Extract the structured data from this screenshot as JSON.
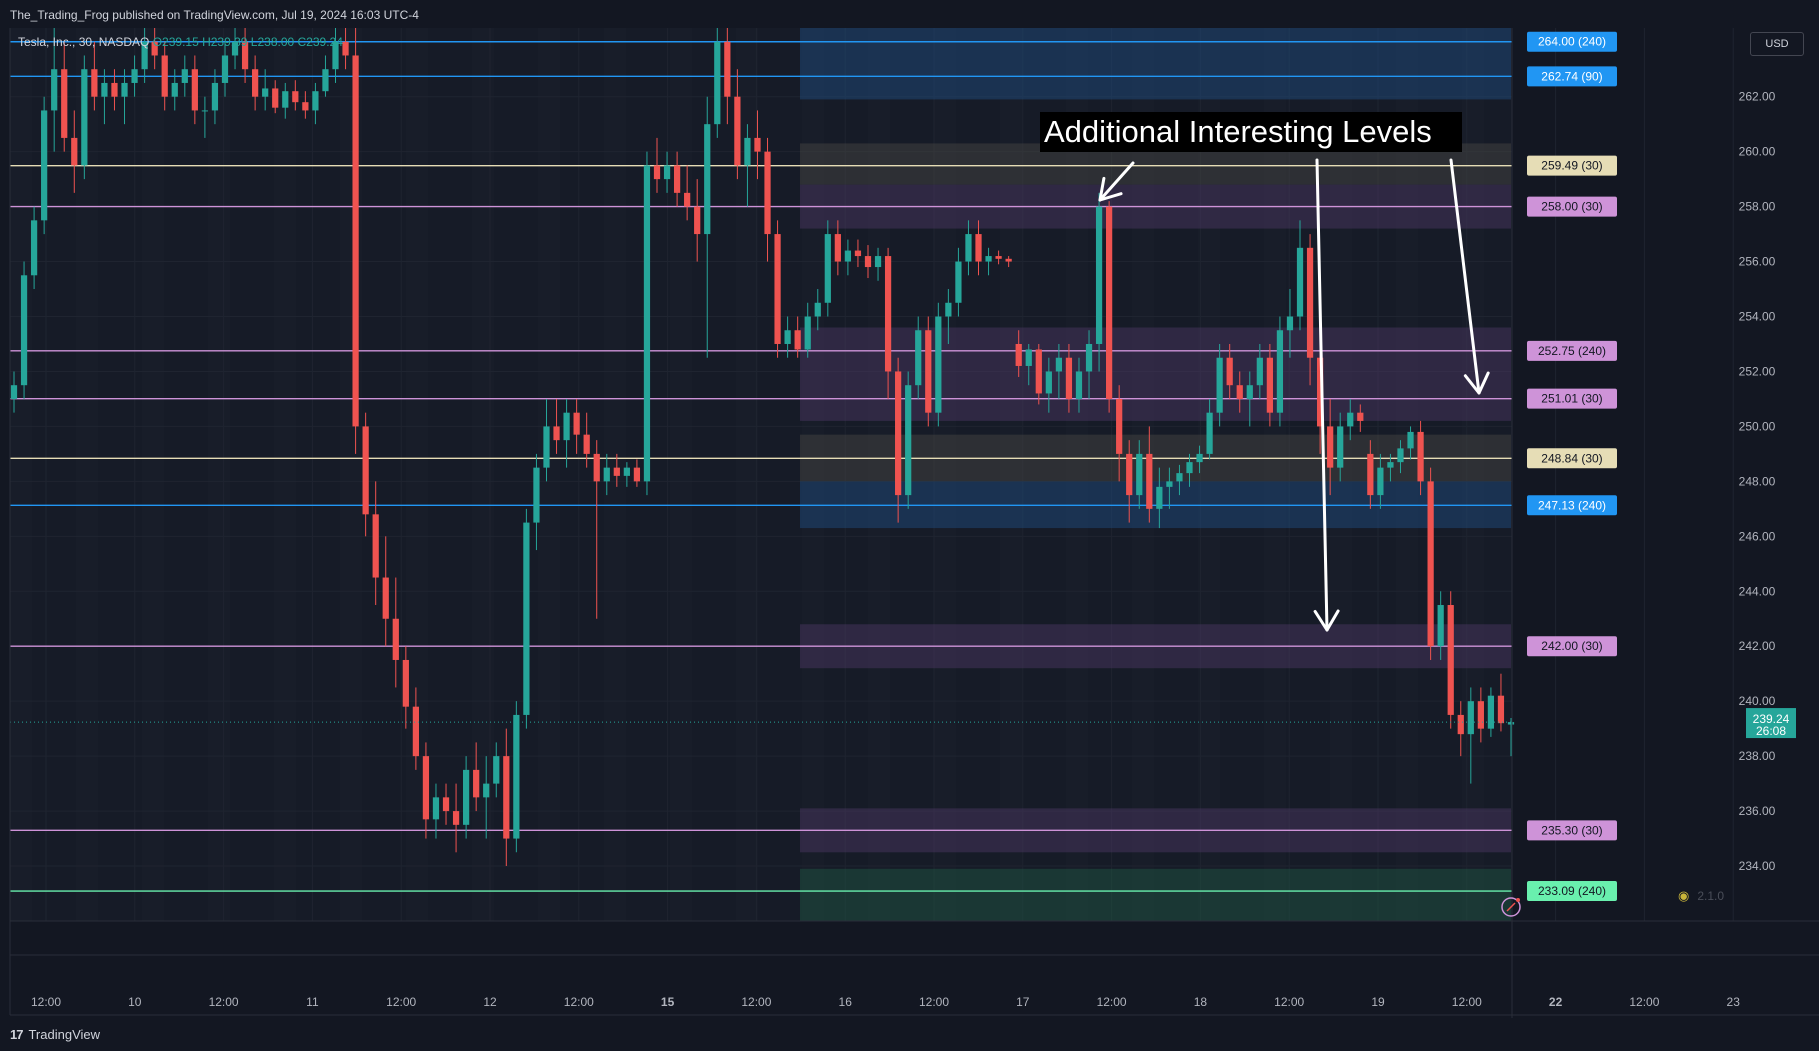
{
  "topbar": {
    "published_text": "The_Trading_Frog published on TradingView.com, Jul 19, 2024 16:03 UTC-4"
  },
  "currency": "USD",
  "annotation": "Additional Interesting Levels",
  "brand": {
    "logo_text": "17",
    "name": "TradingView"
  },
  "version_badge": "2.1.0",
  "colors": {
    "background": "#131722",
    "up": "#26a69a",
    "down": "#ef5350",
    "blue_level": "#2196f3",
    "violet_level": "#ce93d8",
    "sand_level": "#e6ddb6",
    "green_level": "#69f0ae"
  },
  "chart_data": {
    "type": "candlestick",
    "symbol": "Tesla, Inc.",
    "interval": "30",
    "exchange": "NASDAQ",
    "ohlc": {
      "o": "O239.15",
      "h": "H239.39",
      "l": "L238.00",
      "c": "C239.24"
    },
    "currency": "USD",
    "ylim": [
      232,
      264.5
    ],
    "y_ticks": [
      "234.00",
      "236.00",
      "238.00",
      "240.00",
      "242.00",
      "244.00",
      "246.00",
      "248.00",
      "250.00",
      "252.00",
      "254.00",
      "256.00",
      "258.00",
      "260.00",
      "262.00"
    ],
    "last_price": {
      "value": 239.24,
      "label": "239.24",
      "countdown": "26:08"
    },
    "x_ticks": [
      {
        "label": "12:00",
        "bold": false
      },
      {
        "label": "10",
        "bold": false
      },
      {
        "label": "12:00",
        "bold": false
      },
      {
        "label": "11",
        "bold": false
      },
      {
        "label": "12:00",
        "bold": false
      },
      {
        "label": "12",
        "bold": false
      },
      {
        "label": "12:00",
        "bold": false
      },
      {
        "label": "15",
        "bold": true
      },
      {
        "label": "12:00",
        "bold": false
      },
      {
        "label": "16",
        "bold": false
      },
      {
        "label": "12:00",
        "bold": false
      },
      {
        "label": "17",
        "bold": false
      },
      {
        "label": "12:00",
        "bold": false
      },
      {
        "label": "18",
        "bold": false
      },
      {
        "label": "12:00",
        "bold": false
      },
      {
        "label": "19",
        "bold": false
      },
      {
        "label": "12:00",
        "bold": false
      },
      {
        "label": "22",
        "bold": true
      },
      {
        "label": "12:00",
        "bold": false
      },
      {
        "label": "23",
        "bold": false
      }
    ],
    "levels": [
      {
        "value": 264.0,
        "label": "264.00 (240)",
        "kind": "blue"
      },
      {
        "value": 262.74,
        "label": "262.74 (90)",
        "kind": "blue"
      },
      {
        "value": 259.49,
        "label": "259.49 (30)",
        "kind": "sand"
      },
      {
        "value": 258.0,
        "label": "258.00 (30)",
        "kind": "violet"
      },
      {
        "value": 252.75,
        "label": "252.75 (240)",
        "kind": "violet"
      },
      {
        "value": 251.01,
        "label": "251.01 (30)",
        "kind": "violet"
      },
      {
        "value": 248.84,
        "label": "248.84 (30)",
        "kind": "sand"
      },
      {
        "value": 247.13,
        "label": "247.13 (240)",
        "kind": "blue"
      },
      {
        "value": 242.0,
        "label": "242.00 (30)",
        "kind": "violet"
      },
      {
        "value": 235.3,
        "label": "235.30 (30)",
        "kind": "violet"
      },
      {
        "value": 233.09,
        "label": "233.09 (240)",
        "kind": "green"
      }
    ],
    "zones": [
      {
        "y1": 261.9,
        "y2": 264.8,
        "kind": "blue"
      },
      {
        "y1": 258.8,
        "y2": 260.3,
        "kind": "sand"
      },
      {
        "y1": 257.2,
        "y2": 258.8,
        "kind": "violet"
      },
      {
        "y1": 250.2,
        "y2": 253.6,
        "kind": "violet"
      },
      {
        "y1": 248.0,
        "y2": 249.7,
        "kind": "sand"
      },
      {
        "y1": 246.3,
        "y2": 248.0,
        "kind": "blue"
      },
      {
        "y1": 241.2,
        "y2": 242.8,
        "kind": "violet"
      },
      {
        "y1": 234.5,
        "y2": 236.1,
        "kind": "violet"
      },
      {
        "y1": 232.0,
        "y2": 233.9,
        "kind": "green"
      }
    ],
    "candles": [
      [
        251,
        252,
        250.5,
        251.5
      ],
      [
        251.5,
        256,
        251,
        255.5
      ],
      [
        255.5,
        258,
        255,
        257.5
      ],
      [
        257.5,
        262,
        257,
        261.5
      ],
      [
        261.5,
        264.5,
        260,
        263
      ],
      [
        263,
        264,
        260,
        260.5
      ],
      [
        260.5,
        261.5,
        258.5,
        259.5
      ],
      [
        259.5,
        263.5,
        259,
        263
      ],
      [
        263,
        264,
        261.5,
        262
      ],
      [
        262,
        263,
        261,
        262.5
      ],
      [
        262.5,
        263,
        261.5,
        262
      ],
      [
        262,
        263,
        261,
        262.5
      ],
      [
        262.5,
        263.5,
        262,
        263
      ],
      [
        263,
        264.5,
        262.5,
        264
      ],
      [
        264,
        264.8,
        263,
        263.5
      ],
      [
        263.5,
        264,
        261.5,
        262
      ],
      [
        262,
        263,
        261.5,
        262.5
      ],
      [
        262.5,
        263.5,
        262,
        263
      ],
      [
        263,
        263.5,
        261,
        261.5
      ],
      [
        261.5,
        262,
        260.5,
        261.5
      ],
      [
        261.5,
        263,
        261,
        262.5
      ],
      [
        262.5,
        264,
        262,
        263.5
      ],
      [
        263.5,
        264.8,
        263,
        264
      ],
      [
        264,
        264.8,
        262.5,
        263
      ],
      [
        263,
        263.5,
        261.5,
        262
      ],
      [
        262,
        263,
        261.5,
        262.3
      ],
      [
        262.3,
        262.6,
        261.4,
        261.6
      ],
      [
        261.6,
        262.5,
        261.2,
        262.2
      ],
      [
        262.2,
        262.6,
        261.5,
        261.8
      ],
      [
        261.8,
        262.2,
        261.2,
        261.5
      ],
      [
        261.5,
        262.5,
        261,
        262.2
      ],
      [
        262.2,
        263.5,
        262,
        263
      ],
      [
        263,
        264.5,
        262.5,
        264
      ],
      [
        264,
        264.8,
        263,
        263.5
      ],
      [
        263.5,
        264.5,
        249,
        250
      ],
      [
        250,
        250.5,
        246,
        246.8
      ],
      [
        246.8,
        248,
        243.5,
        244.5
      ],
      [
        244.5,
        246,
        242,
        243
      ],
      [
        243,
        244.5,
        240.5,
        241.5
      ],
      [
        241.5,
        242,
        239,
        239.8
      ],
      [
        239.8,
        240.5,
        237.5,
        238
      ],
      [
        238,
        238.5,
        235,
        235.7
      ],
      [
        235.7,
        237,
        235,
        236.5
      ],
      [
        236.5,
        237,
        235.5,
        236
      ],
      [
        236,
        237,
        234.5,
        235.5
      ],
      [
        235.5,
        238,
        235,
        237.5
      ],
      [
        237.5,
        238.5,
        236,
        236.5
      ],
      [
        236.5,
        238,
        235,
        237
      ],
      [
        237,
        238.5,
        236.5,
        238
      ],
      [
        238,
        239,
        234,
        235
      ],
      [
        235,
        240,
        234.5,
        239.5
      ],
      [
        239.5,
        247,
        239,
        246.5
      ],
      [
        246.5,
        249,
        245.5,
        248.5
      ],
      [
        248.5,
        251,
        248,
        250
      ],
      [
        250,
        251,
        249,
        249.5
      ],
      [
        249.5,
        251,
        248.5,
        250.5
      ],
      [
        250.5,
        251,
        249,
        249.7
      ],
      [
        249.7,
        250.5,
        248.5,
        249
      ],
      [
        249,
        249.5,
        243,
        248
      ],
      [
        248,
        249,
        247.5,
        248.5
      ],
      [
        248.5,
        249,
        247.8,
        248.2
      ],
      [
        248.2,
        248.7,
        247.8,
        248.5
      ],
      [
        248.5,
        248.8,
        247.8,
        248
      ],
      [
        248,
        260,
        247.5,
        259.5
      ],
      [
        259.5,
        260.5,
        258.5,
        259
      ],
      [
        259,
        260,
        258.5,
        259.5
      ],
      [
        259.5,
        260,
        258,
        258.5
      ],
      [
        258.5,
        259.5,
        257.5,
        258
      ],
      [
        258,
        259,
        256,
        257
      ],
      [
        257,
        262,
        252.5,
        261
      ],
      [
        261,
        264.8,
        260.5,
        264
      ],
      [
        264,
        264.5,
        261,
        262
      ],
      [
        262,
        263,
        259,
        259.5
      ],
      [
        259.5,
        261,
        258,
        260.5
      ],
      [
        260.5,
        261.5,
        259,
        260
      ],
      [
        260,
        260.5,
        256,
        257
      ],
      [
        257,
        257.5,
        252.5,
        253
      ],
      [
        253,
        254,
        252.5,
        253.5
      ],
      [
        253.5,
        254,
        252.5,
        252.8
      ],
      [
        252.8,
        254.5,
        252.5,
        254
      ],
      [
        254,
        255,
        253.5,
        254.5
      ],
      [
        254.5,
        257.5,
        254,
        257
      ],
      [
        257,
        257.5,
        255.5,
        256
      ],
      [
        256,
        256.8,
        255.5,
        256.4
      ],
      [
        256.4,
        256.8,
        255.8,
        256.2
      ],
      [
        256.2,
        256.6,
        255.4,
        255.8
      ],
      [
        255.8,
        256.5,
        255.3,
        256.2
      ],
      [
        256.2,
        256.5,
        251,
        252
      ],
      [
        252,
        252.5,
        246.5,
        247.5
      ],
      [
        247.5,
        252,
        247,
        251.5
      ],
      [
        251.5,
        254,
        251,
        253.5
      ],
      [
        253.5,
        254,
        250,
        250.5
      ],
      [
        250.5,
        254.5,
        250,
        254
      ],
      [
        254,
        255,
        253,
        254.5
      ],
      [
        254.5,
        256.5,
        254,
        256
      ],
      [
        256,
        257.5,
        255.5,
        257
      ],
      [
        257,
        257.5,
        255.5,
        256
      ],
      [
        256,
        256.5,
        255.5,
        256.2
      ],
      [
        256.2,
        256.4,
        255.9,
        256.1
      ],
      [
        256.1,
        256.2,
        255.8,
        256
      ],
      [
        253,
        253.5,
        251.8,
        252.2
      ],
      [
        252.2,
        253,
        251.5,
        252.8
      ],
      [
        252.8,
        253,
        250.8,
        251.2
      ],
      [
        251.2,
        252.5,
        250.5,
        252
      ],
      [
        252,
        253,
        251,
        252.5
      ],
      [
        252.5,
        253,
        250.5,
        251
      ],
      [
        251,
        252.5,
        250.5,
        252
      ],
      [
        252,
        253.5,
        251,
        253
      ],
      [
        253,
        258.5,
        252,
        258
      ],
      [
        258,
        258.2,
        250.5,
        251
      ],
      [
        251,
        251.5,
        248,
        249
      ],
      [
        249,
        249.5,
        246.5,
        247.5
      ],
      [
        247.5,
        249.5,
        247,
        249
      ],
      [
        249,
        250,
        246.5,
        247
      ],
      [
        247,
        248.5,
        246.3,
        247.8
      ],
      [
        247.8,
        248.5,
        247,
        248
      ],
      [
        248,
        248.6,
        247.5,
        248.3
      ],
      [
        248.3,
        249,
        247.8,
        248.7
      ],
      [
        248.7,
        249.3,
        248.3,
        249
      ],
      [
        249,
        251,
        248.8,
        250.5
      ],
      [
        250.5,
        253,
        250,
        252.5
      ],
      [
        252.5,
        253,
        251,
        251.5
      ],
      [
        251.5,
        252,
        250.5,
        251
      ],
      [
        251,
        252,
        250,
        251.5
      ],
      [
        251.5,
        253,
        251,
        252.5
      ],
      [
        252.5,
        253,
        250,
        250.5
      ],
      [
        250.5,
        254,
        250,
        253.5
      ],
      [
        253.5,
        255,
        252.5,
        254
      ],
      [
        254,
        257.5,
        253.5,
        256.5
      ],
      [
        256.5,
        257,
        251.5,
        252.5
      ],
      [
        252.5,
        253,
        249,
        250
      ],
      [
        250,
        251,
        247.5,
        248.5
      ],
      [
        248.5,
        250.5,
        248,
        250
      ],
      [
        250,
        251,
        249.5,
        250.5
      ],
      [
        250.5,
        250.8,
        249.8,
        250.2
      ],
      [
        249,
        249.5,
        247,
        247.5
      ],
      [
        247.5,
        249,
        247,
        248.5
      ],
      [
        248.5,
        249,
        248,
        248.7
      ],
      [
        248.7,
        249.5,
        248.3,
        249.2
      ],
      [
        249.2,
        250,
        248.8,
        249.8
      ],
      [
        249.8,
        250.2,
        247.5,
        248
      ],
      [
        248,
        248.5,
        241.5,
        242
      ],
      [
        242,
        244,
        241.5,
        243.5
      ],
      [
        243.5,
        244,
        239,
        239.5
      ],
      [
        239.5,
        240,
        238,
        238.8
      ],
      [
        238.8,
        240.5,
        237,
        240
      ],
      [
        240,
        240.5,
        238.5,
        239
      ],
      [
        239,
        240.5,
        238.7,
        240.2
      ],
      [
        240.2,
        241,
        238.9,
        239.2
      ],
      [
        239.15,
        239.39,
        238.0,
        239.24
      ]
    ]
  }
}
